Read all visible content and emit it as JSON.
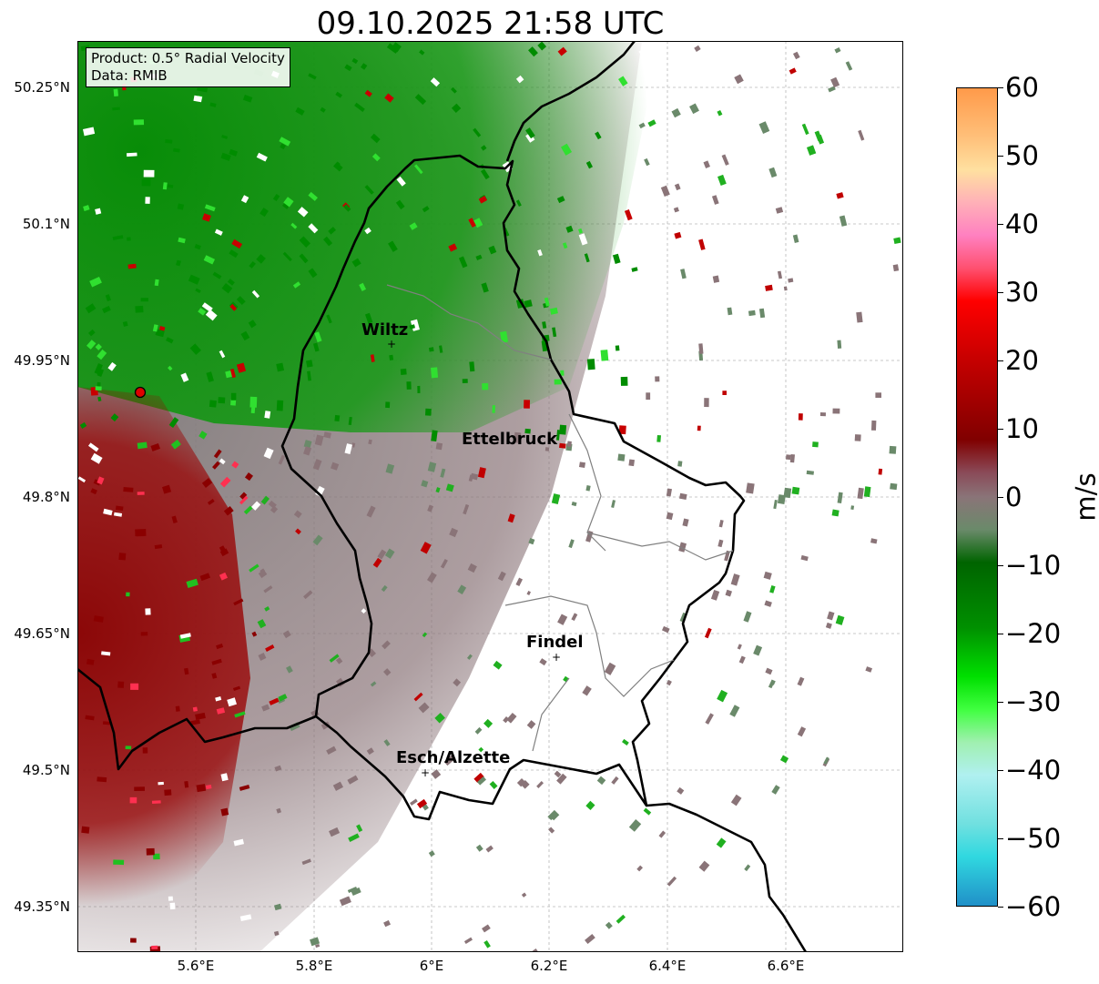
{
  "title": "09.10.2025 21:58 UTC",
  "info": {
    "product": "Product: 0.5° Radial Velocity",
    "data": "Data: RMIB"
  },
  "axes": {
    "lat_ticks": [
      "50.25°N",
      "50.1°N",
      "49.95°N",
      "49.8°N",
      "49.65°N",
      "49.5°N",
      "49.35°N"
    ],
    "lon_ticks": [
      "5.6°E",
      "5.8°E",
      "6°E",
      "6.2°E",
      "6.4°E",
      "6.6°E"
    ]
  },
  "cities": [
    {
      "name": "Wiltz"
    },
    {
      "name": "Ettelbruck"
    },
    {
      "name": "Findel"
    },
    {
      "name": "Esch/Alzette"
    }
  ],
  "colorbar": {
    "label": "m/s",
    "ticks": [
      "60",
      "50",
      "40",
      "30",
      "20",
      "10",
      "0",
      "−10",
      "−20",
      "−30",
      "−40",
      "−50",
      "−60"
    ],
    "min": -60,
    "max": 60
  },
  "colors": {
    "positive_dark": "#7a0000",
    "positive_red": "#e00000",
    "near_zero": "#8a7478",
    "negative_green": "#008c00",
    "negative_light": "#7ef57e",
    "extreme_negative": "#2a9ccd",
    "extreme_positive": "#ffa050"
  }
}
